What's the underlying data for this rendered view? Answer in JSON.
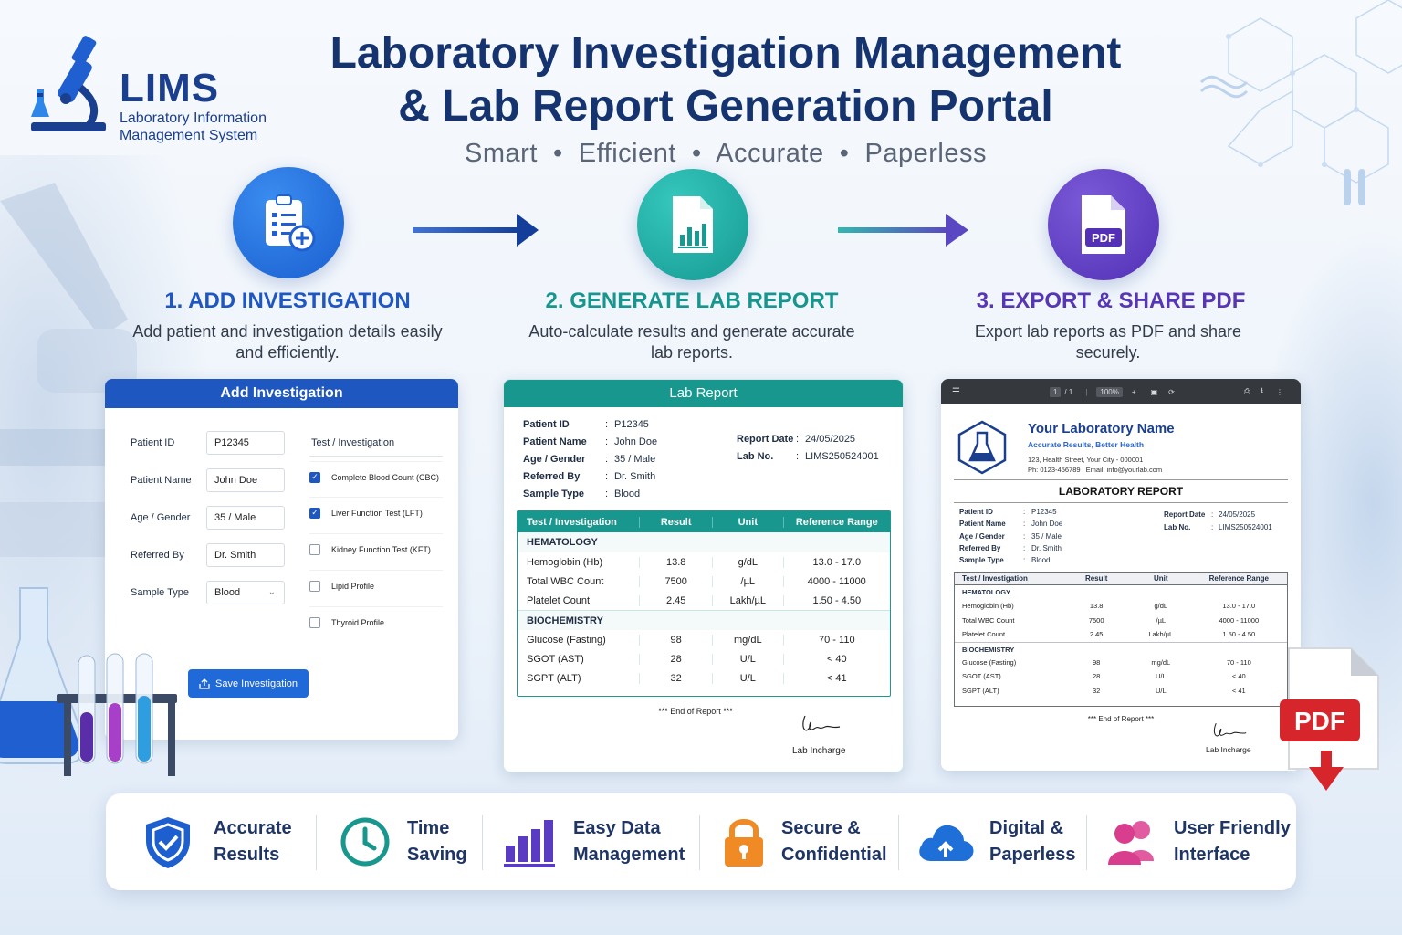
{
  "brand": {
    "name": "LIMS",
    "subtitle_line1": "Laboratory Information",
    "subtitle_line2": "Management System"
  },
  "header": {
    "title_line1": "Laboratory Investigation Management",
    "title_line2": "& Lab Report Generation Portal",
    "tagline": "Smart  •  Efficient  •  Accurate  •  Paperless"
  },
  "steps": [
    {
      "title": "1. ADD INVESTIGATION",
      "desc": "Add patient and investigation details easily and efficiently.",
      "icon": "clipboard-add-icon",
      "color": "#1e56c2"
    },
    {
      "title": "2. GENERATE LAB REPORT",
      "desc": "Auto-calculate results and generate accurate lab reports.",
      "icon": "report-chart-icon",
      "color": "#16968e"
    },
    {
      "title": "3. EXPORT & SHARE PDF",
      "desc": "Export lab reports as PDF and share securely.",
      "icon": "pdf-file-icon",
      "color": "#5636b4"
    }
  ],
  "add_form": {
    "title": "Add Investigation",
    "fields": [
      {
        "label": "Patient ID",
        "value": "P12345"
      },
      {
        "label": "Patient Name",
        "value": "John Doe"
      },
      {
        "label": "Age / Gender",
        "value": "35 / Male"
      },
      {
        "label": "Referred By",
        "value": "Dr. Smith"
      },
      {
        "label": "Sample Type",
        "value": "Blood"
      }
    ],
    "tests_header": "Test / Investigation",
    "tests": [
      {
        "label": "Complete Blood Count (CBC)",
        "checked": true
      },
      {
        "label": "Liver Function Test (LFT)",
        "checked": true
      },
      {
        "label": "Kidney Function Test (KFT)",
        "checked": false
      },
      {
        "label": "Lipid Profile",
        "checked": false
      },
      {
        "label": "Thyroid Profile",
        "checked": false
      }
    ],
    "save_label": "Save Investigation"
  },
  "lab_report": {
    "title": "Lab Report",
    "patient": [
      {
        "label": "Patient ID",
        "value": "P12345"
      },
      {
        "label": "Patient Name",
        "value": "John Doe"
      },
      {
        "label": "Age / Gender",
        "value": "35 / Male"
      },
      {
        "label": "Referred By",
        "value": "Dr. Smith"
      },
      {
        "label": "Sample Type",
        "value": "Blood"
      }
    ],
    "meta": [
      {
        "label": "Report Date",
        "value": "24/05/2025"
      },
      {
        "label": "Lab No.",
        "value": "LIMS250524001"
      }
    ],
    "columns": [
      "Test / Investigation",
      "Result",
      "Unit",
      "Reference Range"
    ],
    "sections": [
      {
        "name": "HEMATOLOGY",
        "rows": [
          [
            "Hemoglobin (Hb)",
            "13.8",
            "g/dL",
            "13.0 - 17.0"
          ],
          [
            "Total WBC Count",
            "7500",
            "/µL",
            "4000 - 11000"
          ],
          [
            "Platelet Count",
            "2.45",
            "Lakh/µL",
            "1.50 - 4.50"
          ]
        ]
      },
      {
        "name": "BIOCHEMISTRY",
        "rows": [
          [
            "Glucose (Fasting)",
            "98",
            "mg/dL",
            "70 - 110"
          ],
          [
            "SGOT (AST)",
            "28",
            "U/L",
            "< 40"
          ],
          [
            "SGPT (ALT)",
            "32",
            "U/L",
            "< 41"
          ]
        ]
      }
    ],
    "end_text": "*** End of Report ***",
    "signatory": "Lab Incharge"
  },
  "pdf_view": {
    "page_indicator": "1",
    "page_total": "/ 1",
    "zoom": "100%",
    "lab_name": "Your Laboratory Name",
    "lab_tagline": "Accurate Results, Better Health",
    "lab_address": "123, Health Street, Your City - 000001",
    "lab_contact": "Ph: 0123-456789 | Email: info@yourlab.com",
    "report_title": "LABORATORY REPORT",
    "patient": [
      {
        "label": "Patient ID",
        "value": "P12345"
      },
      {
        "label": "Patient Name",
        "value": "John Doe"
      },
      {
        "label": "Age / Gender",
        "value": "35 / Male"
      },
      {
        "label": "Referred By",
        "value": "Dr. Smith"
      },
      {
        "label": "Sample Type",
        "value": "Blood"
      }
    ],
    "meta": [
      {
        "label": "Report Date",
        "value": "24/05/2025"
      },
      {
        "label": "Lab No.",
        "value": "LIMS250524001"
      }
    ],
    "columns": [
      "Test / Investigation",
      "Result",
      "Unit",
      "Reference Range"
    ],
    "sections": [
      {
        "name": "HEMATOLOGY",
        "rows": [
          [
            "Hemoglobin (Hb)",
            "13.8",
            "g/dL",
            "13.0 - 17.0"
          ],
          [
            "Total WBC Count",
            "7500",
            "/µL",
            "4000 - 11000"
          ],
          [
            "Platelet Count",
            "2.45",
            "Lakh/µL",
            "1.50 - 4.50"
          ]
        ]
      },
      {
        "name": "BIOCHEMISTRY",
        "rows": [
          [
            "Glucose (Fasting)",
            "98",
            "mg/dL",
            "70 - 110"
          ],
          [
            "SGOT (AST)",
            "28",
            "U/L",
            "< 40"
          ],
          [
            "SGPT (ALT)",
            "32",
            "U/L",
            "< 41"
          ]
        ]
      }
    ],
    "end_text": "*** End of Report ***",
    "signatory": "Lab Incharge",
    "badge": "PDF"
  },
  "features": [
    {
      "line1": "Accurate",
      "line2": "Results",
      "icon": "shield-check-icon",
      "color": "#1e5fd0"
    },
    {
      "line1": "Time",
      "line2": "Saving",
      "icon": "clock-icon",
      "color": "#17978e"
    },
    {
      "line1": "Easy Data",
      "line2": "Management",
      "icon": "bar-chart-icon",
      "color": "#5a3cc2"
    },
    {
      "line1": "Secure &",
      "line2": "Confidential",
      "icon": "lock-icon",
      "color": "#f08a24"
    },
    {
      "line1": "Digital &",
      "line2": "Paperless",
      "icon": "cloud-upload-icon",
      "color": "#1e6fd8"
    },
    {
      "line1": "User Friendly",
      "line2": "Interface",
      "icon": "users-icon",
      "color": "#d93d8d"
    }
  ]
}
